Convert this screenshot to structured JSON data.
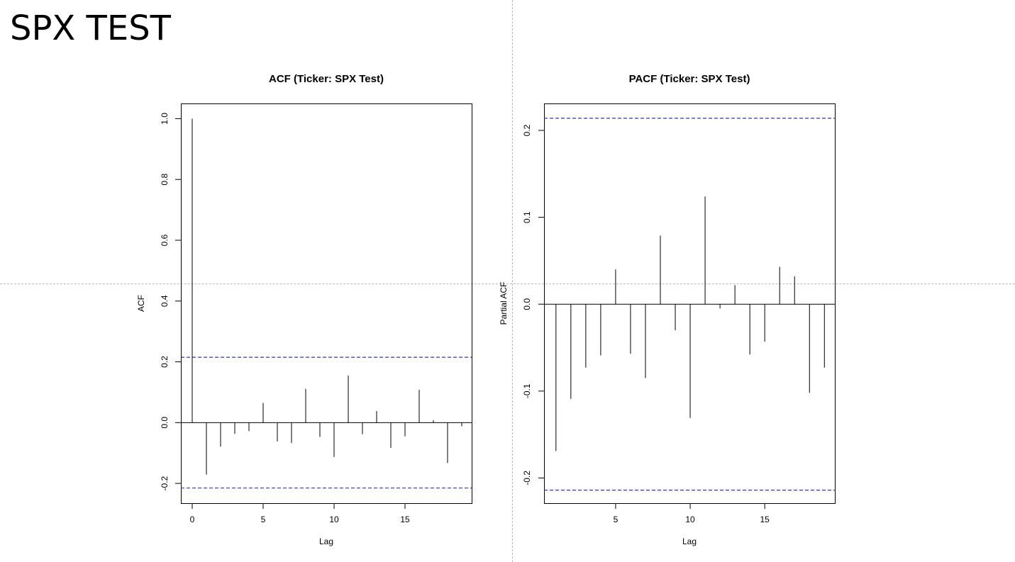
{
  "slide": {
    "title": "SPX TEST"
  },
  "chart_data": [
    {
      "type": "bar",
      "title": "ACF (Ticker: SPX Test)",
      "xlabel": "Lag",
      "ylabel": "ACF",
      "xlim": [
        -0.8,
        19.7
      ],
      "ylim": [
        -0.265,
        1.05
      ],
      "x_ticks": [
        0,
        5,
        10,
        15
      ],
      "y_ticks": [
        -0.2,
        0.0,
        0.2,
        0.4,
        0.6,
        0.8,
        1.0
      ],
      "confidence_bound": 0.215,
      "bound_color": "#3333cc",
      "lags": [
        0,
        1,
        2,
        3,
        4,
        5,
        6,
        7,
        8,
        9,
        10,
        11,
        12,
        13,
        14,
        15,
        16,
        17,
        18,
        19
      ],
      "values": [
        1.0,
        -0.171,
        -0.079,
        -0.037,
        -0.028,
        0.065,
        -0.062,
        -0.067,
        0.111,
        -0.047,
        -0.113,
        0.155,
        -0.038,
        0.038,
        -0.083,
        -0.045,
        0.108,
        0.008,
        -0.133,
        -0.012
      ]
    },
    {
      "type": "bar",
      "title": "PACF (Ticker: SPX Test)",
      "xlabel": "Lag",
      "ylabel": "Partial ACF",
      "xlim": [
        0.2,
        19.7
      ],
      "ylim": [
        -0.229,
        0.231
      ],
      "x_ticks": [
        5,
        10,
        15
      ],
      "y_ticks": [
        -0.2,
        -0.1,
        0.0,
        0.1,
        0.2
      ],
      "confidence_bound": 0.214,
      "bound_color": "#3333cc",
      "lags": [
        1,
        2,
        3,
        4,
        5,
        6,
        7,
        8,
        9,
        10,
        11,
        12,
        13,
        14,
        15,
        16,
        17,
        18,
        19
      ],
      "values": [
        -0.169,
        -0.109,
        -0.073,
        -0.059,
        0.04,
        -0.057,
        -0.085,
        0.079,
        -0.03,
        -0.131,
        0.124,
        -0.005,
        0.022,
        -0.058,
        -0.043,
        0.043,
        0.032,
        -0.102,
        -0.073
      ]
    }
  ]
}
